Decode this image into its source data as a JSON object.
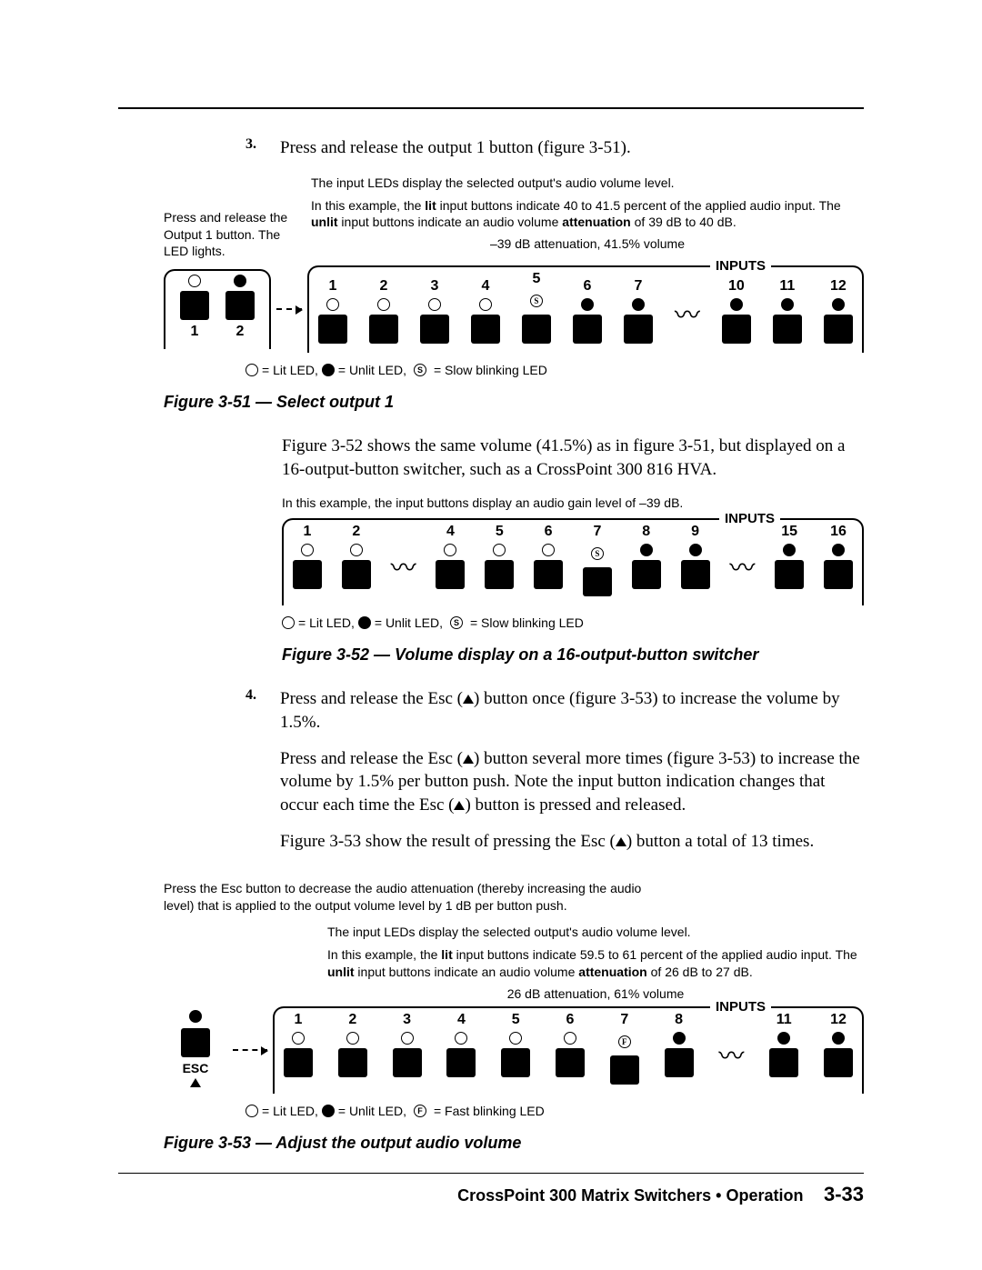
{
  "step3": {
    "num": "3.",
    "text": "Press and release the output 1 button (figure 3-51)."
  },
  "fig51": {
    "callout_left": "Press and release the Output 1 button. The LED lights.",
    "note1": "The input LEDs display the selected output's audio volume level.",
    "note2_a": "In this example, the ",
    "note2_lit": "lit",
    "note2_b": " input buttons indicate 40 to 41.5 percent of the applied audio input.  The ",
    "note2_unlit": "unlit",
    "note2_c": " input buttons indicate an audio volume ",
    "note2_att": "attenuation",
    "note2_d": " of 39 dB to 40 dB.",
    "bracket_label": "–39 dB attenuation, 41.5% volume",
    "inputs_label": "INPUTS",
    "out_buttons": [
      "1",
      "2"
    ],
    "in_buttons": [
      {
        "n": "1",
        "led": "lit"
      },
      {
        "n": "2",
        "led": "lit"
      },
      {
        "n": "3",
        "led": "lit"
      },
      {
        "n": "4",
        "led": "lit"
      },
      {
        "n": "5",
        "led": "blink",
        "letter": "S"
      },
      {
        "n": "6",
        "led": "unlit"
      },
      {
        "n": "7",
        "led": "unlit"
      },
      {
        "n": "10",
        "led": "unlit"
      },
      {
        "n": "11",
        "led": "unlit"
      },
      {
        "n": "12",
        "led": "unlit"
      }
    ],
    "legend_lit": " = Lit LED,  ",
    "legend_unlit": " = Unlit LED,  ",
    "legend_blink": " = Slow blinking LED",
    "caption": "Figure 3-51 — Select output 1"
  },
  "para_52": "Figure 3-52 shows the same volume (41.5%) as in figure 3-51, but displayed on a 16-output-button switcher, such as a CrossPoint 300  816 HVA.",
  "fig52": {
    "note": "In this example, the input buttons display an audio gain level of –39 dB.",
    "inputs_label": "INPUTS",
    "in_buttons": [
      {
        "n": "1",
        "led": "lit"
      },
      {
        "n": "2",
        "led": "lit"
      },
      {
        "n": "4",
        "led": "lit"
      },
      {
        "n": "5",
        "led": "lit"
      },
      {
        "n": "6",
        "led": "lit"
      },
      {
        "n": "7",
        "led": "blink",
        "letter": "S"
      },
      {
        "n": "8",
        "led": "unlit"
      },
      {
        "n": "9",
        "led": "unlit"
      },
      {
        "n": "15",
        "led": "unlit"
      },
      {
        "n": "16",
        "led": "unlit"
      }
    ],
    "legend_lit": " = Lit LED,  ",
    "legend_unlit": " = Unlit LED,  ",
    "legend_blink": " = Slow blinking LED",
    "caption": "Figure 3-52 — Volume display on a 16-output-button switcher"
  },
  "step4": {
    "num": "4.",
    "text_a": "Press and release the Esc (",
    "text_b": ") button once (figure 3-53) to increase the volume by 1.5%.",
    "para2_a": "Press and release the Esc (",
    "para2_b": ") button several more times (figure 3-53) to increase the volume by 1.5% per button push.  Note the input button indication changes that occur each time the Esc (",
    "para2_c": ") button is pressed and released.",
    "para3_a": "Figure 3-53 show the result of pressing the Esc (",
    "para3_b": ") button a total of 13 times."
  },
  "fig53": {
    "callout_top": "Press the Esc button to decrease the audio attenuation (thereby increasing the audio level) that is applied to the output volume level by 1 dB per button push.",
    "note1": "The input LEDs display the selected output's audio volume level.",
    "note2_a": "In this example, the ",
    "note2_lit": "lit",
    "note2_b": " input buttons indicate 59.5 to 61 percent of the applied audio input.  The ",
    "note2_unlit": "unlit",
    "note2_c": " input buttons indicate an audio volume ",
    "note2_att": "attenuation",
    "note2_d": " of 26 dB to 27 dB.",
    "bracket_label": "26 dB attenuation, 61% volume",
    "inputs_label": "INPUTS",
    "esc_label": "ESC",
    "in_buttons": [
      {
        "n": "1",
        "led": "lit"
      },
      {
        "n": "2",
        "led": "lit"
      },
      {
        "n": "3",
        "led": "lit"
      },
      {
        "n": "4",
        "led": "lit"
      },
      {
        "n": "5",
        "led": "lit"
      },
      {
        "n": "6",
        "led": "lit"
      },
      {
        "n": "7",
        "led": "blink",
        "letter": "F"
      },
      {
        "n": "8",
        "led": "unlit"
      },
      {
        "n": "11",
        "led": "unlit"
      },
      {
        "n": "12",
        "led": "unlit"
      }
    ],
    "legend_lit": " = Lit LED,  ",
    "legend_unlit": " = Unlit LED,  ",
    "legend_blink": " = Fast blinking LED",
    "caption": "Figure 3-53 — Adjust the output audio volume"
  },
  "footer": {
    "text": "CrossPoint 300 Matrix Switchers • Operation",
    "page": "3-33"
  }
}
